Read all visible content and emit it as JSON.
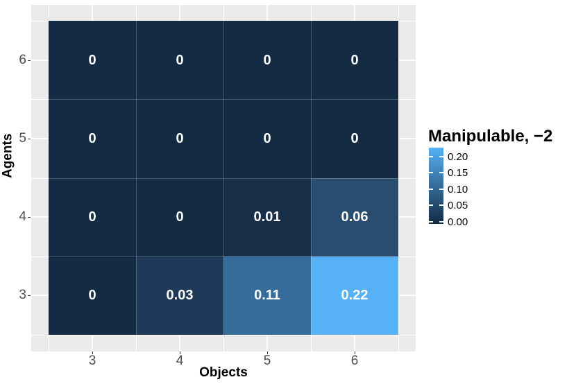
{
  "figure": {
    "background": "#FFFFFF",
    "panel_background": "#EBEBEB",
    "gridline_color": "#FFFFFF",
    "tick_color": "#333333",
    "tick_label_color": "#4D4D4D",
    "cell_label_color": "#FFFFFF"
  },
  "chart_data": {
    "type": "heatmap",
    "xlabel": "Objects",
    "ylabel": "Agents",
    "x_categories": [
      "3",
      "4",
      "5",
      "6"
    ],
    "y_categories_top_to_bottom": [
      "6",
      "5",
      "4",
      "3"
    ],
    "grid": true,
    "rows": [
      {
        "agent": "6",
        "values": [
          0,
          0,
          0,
          0
        ],
        "labels": [
          "0",
          "0",
          "0",
          "0"
        ]
      },
      {
        "agent": "5",
        "values": [
          0,
          0,
          0,
          0
        ],
        "labels": [
          "0",
          "0",
          "0",
          "0"
        ]
      },
      {
        "agent": "4",
        "values": [
          0,
          0,
          0.01,
          0.06
        ],
        "labels": [
          "0",
          "0",
          "0.01",
          "0.06"
        ]
      },
      {
        "agent": "3",
        "values": [
          0,
          0.03,
          0.11,
          0.22
        ],
        "labels": [
          "0",
          "0.03",
          "0.11",
          "0.22"
        ]
      }
    ],
    "value_colors": {
      "0": "#132B43",
      "0.01": "#172F48",
      "0.03": "#1E3A58",
      "0.06": "#294D6F",
      "0.11": "#356C99",
      "0.22": "#56B1F7"
    },
    "legend": {
      "title": "Manipulable, −2",
      "position": "right",
      "tick_labels": [
        "0.20",
        "0.15",
        "0.10",
        "0.05",
        "0.00"
      ],
      "range": [
        0,
        0.22
      ],
      "gradient_low": "#132B43",
      "gradient_mid": "#356C99",
      "gradient_high": "#56B1F7"
    }
  }
}
